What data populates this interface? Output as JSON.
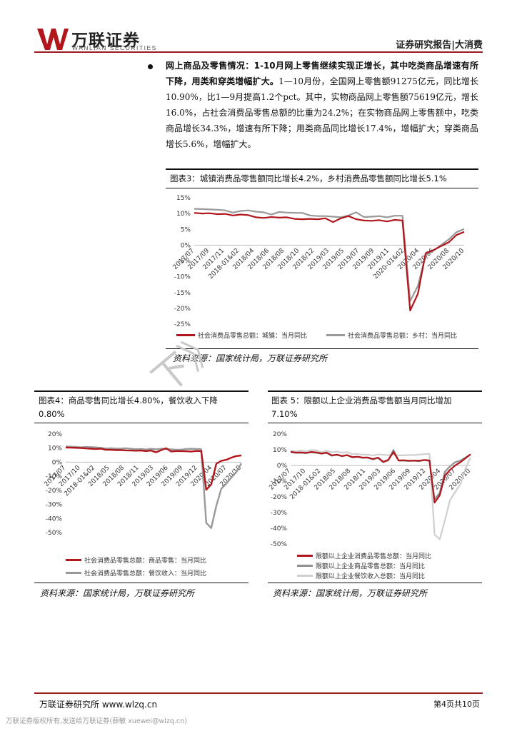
{
  "header": {
    "logo_cn": "万联证券",
    "logo_en": "WANLIAN SECURITIES",
    "report_type": "证券研究报告|大消费",
    "brand_color": "#9b1c20"
  },
  "body": {
    "lead": "网上商品及零售情况：1-10月网上零售继续实现正增长，其中吃类商品增速有所下降，用类和穿类增幅扩大。",
    "text": "1—10月份，全国网上零售额91275亿元，同比增长10.90%，比1—9月提高1.2个pct。其中，实物商品网上零售额75619亿元，增长16.0%，占社会消费品零售总额的比重为24.2%；在实物商品网上零售额中，吃类商品增长34.3%，增速有所下降；用类商品同比增长17.4%，增幅扩大；穿类商品增长5.6%，增幅扩大。"
  },
  "stamp_text": "下》",
  "fig3": {
    "title": "图表3：城镇消费品零售额同比增长4.2%，乡村消费品零售额同比增长5.1%",
    "source": "资料来源：国家统计局，万联证券研究所"
  },
  "fig4": {
    "title_line1": "图表4：商品零售同比增长4.80%，餐饮收入下降",
    "title_line2": "0.80%",
    "source": "资料来源：国家统计局，万联证券研究所"
  },
  "fig5": {
    "title_line1": "图表 5：限额以上企业消费品零售额当月同比增加",
    "title_line2": "7.10%",
    "source": "资料来源：国家统计局，万联证券研究所"
  },
  "footer": {
    "left": "万联证券研究所 www.wlzq.cn",
    "right": "第4页共10页",
    "watermark": "万联证券版权所有,发送给万联证券(薛敏 xuewei@wlzq.cn)"
  },
  "chart_data": [
    {
      "type": "line",
      "id": "fig3",
      "ylim": [
        -25,
        15
      ],
      "y_ticks": [
        "15%",
        "10%",
        "5%",
        "0%",
        "-5%",
        "-10%",
        "-15%",
        "-20%",
        "-25%"
      ],
      "x_ticks": [
        "2017/07",
        "2017/09",
        "2017/11",
        "2018-01&02",
        "2018/04",
        "2018/06",
        "2018/08",
        "2018/10",
        "2018/12",
        "2019/03",
        "2019/05",
        "2019/07",
        "2019/09",
        "2019/11",
        "2020-01&02",
        "2020/04",
        "2020/06",
        "2020/08",
        "2020/10"
      ],
      "grid": false,
      "legend_position": "bottom",
      "series": [
        {
          "name": "社会消费品零售总额：城镇：当月同比",
          "color": "#b0161c",
          "values": [
            10.2,
            10.0,
            10.1,
            9.8,
            9.9,
            9.4,
            9.7,
            9.5,
            8.8,
            8.6,
            8.9,
            8.7,
            8.8,
            8.3,
            8.2,
            8.3,
            8.2,
            8.5,
            7.3,
            8.5,
            9.2,
            8.2,
            7.8,
            7.7,
            7.9,
            7.5,
            8.0,
            7.8,
            -20.7,
            -15.4,
            -2.6,
            -1.6,
            -0.3,
            0.9,
            3.2,
            4.2
          ]
        },
        {
          "name": "社会消费品零售总额：乡村：当月同比",
          "color": "#999999",
          "values": [
            11.5,
            11.4,
            11.3,
            11.2,
            11.0,
            10.3,
            10.8,
            11.0,
            10.6,
            10.4,
            9.7,
            10.5,
            10.3,
            10.2,
            10.2,
            9.4,
            9.2,
            9.2,
            9.0,
            8.8,
            9.4,
            10.4,
            8.9,
            9.0,
            9.2,
            8.8,
            9.3,
            9.3,
            -17.7,
            -12.9,
            -3.2,
            -1.8,
            0.0,
            1.8,
            4.1,
            5.1
          ]
        }
      ]
    },
    {
      "type": "line",
      "id": "fig4",
      "ylim": [
        -50,
        20
      ],
      "y_ticks": [
        "20%",
        "10%",
        "0%",
        "-10%",
        "-20%",
        "-30%",
        "-40%",
        "-50%"
      ],
      "x_ticks": [
        "2017/07",
        "2017/10",
        "2018-01&02",
        "2018/05",
        "2018/08",
        "2018/11",
        "2019/03",
        "2019/06",
        "2019/09",
        "2019/12",
        "2020/04",
        "2020/07",
        "2020/10"
      ],
      "grid": false,
      "legend_position": "bottom",
      "series": [
        {
          "name": "社会消费品零售总额：商品零售：当月同比",
          "color": "#b0161c",
          "values": [
            10.4,
            10.3,
            10.2,
            10.1,
            9.8,
            9.6,
            9.4,
            9.6,
            8.8,
            8.8,
            8.6,
            8.6,
            8.4,
            8.3,
            8.2,
            8.3,
            7.9,
            8.3,
            7.0,
            8.5,
            9.9,
            7.6,
            7.9,
            7.9,
            7.8,
            7.5,
            8.0,
            7.9,
            -19.6,
            -15.8,
            -1.1,
            1.0,
            1.7,
            3.2,
            4.4,
            4.8
          ]
        },
        {
          "name": "社会消费品零售总额：餐饮收入：当月同比",
          "color": "#999999",
          "values": [
            11.1,
            11.0,
            10.9,
            10.5,
            10.8,
            10.7,
            10.5,
            10.2,
            9.7,
            9.9,
            9.6,
            9.7,
            9.9,
            9.5,
            9.2,
            9.4,
            9.0,
            9.5,
            9.1,
            9.5,
            9.4,
            9.1,
            8.9,
            8.9,
            9.4,
            9.5,
            9.4,
            9.2,
            -43.1,
            -46.8,
            -31.1,
            -18.9,
            -15.2,
            -11.0,
            -7.0,
            -0.8
          ]
        }
      ]
    },
    {
      "type": "line",
      "id": "fig5",
      "ylim": [
        -50,
        20
      ],
      "y_ticks": [
        "20%",
        "10%",
        "0%",
        "-10%",
        "-20%",
        "-30%",
        "-40%",
        "-50%"
      ],
      "x_ticks": [
        "2017/07",
        "2017/10",
        "2018-01&02",
        "2018/05",
        "2018/08",
        "2018/11",
        "2019/03",
        "2019/06",
        "2019/09",
        "2019/12",
        "2020/04",
        "2020/07",
        "2020/10"
      ],
      "grid": false,
      "legend_position": "bottom",
      "series": [
        {
          "name": "限额以上企业消费品零售总额：当月同比",
          "color": "#b0161c",
          "values": [
            8.7,
            8.2,
            8.3,
            8.0,
            8.6,
            8.3,
            7.6,
            8.2,
            6.4,
            6.9,
            6.0,
            6.6,
            5.3,
            5.6,
            5.0,
            5.1,
            4.1,
            5.0,
            2.3,
            3.6,
            8.6,
            3.2,
            3.3,
            3.0,
            3.1,
            3.0,
            3.5,
            3.2,
            -23.7,
            -19.0,
            -6.4,
            -2.8,
            0.0,
            2.0,
            4.6,
            7.1
          ]
        },
        {
          "name": "限额以上企业商品零售总额：当月同比",
          "color": "#8f8f8f",
          "values": [
            8.5,
            8.0,
            8.0,
            7.8,
            8.4,
            8.0,
            7.5,
            8.0,
            6.2,
            6.7,
            5.9,
            6.5,
            5.1,
            5.4,
            4.8,
            4.9,
            3.8,
            4.8,
            2.0,
            3.2,
            9.9,
            3.0,
            3.0,
            2.8,
            3.0,
            2.7,
            3.3,
            2.9,
            -21.7,
            -17.4,
            -4.0,
            -0.6,
            2.1,
            3.1,
            5.0,
            7.0
          ]
        },
        {
          "name": "限额以上企业餐饮收入总额：当月同比",
          "color": "#cfcfcf",
          "values": [
            9.3,
            9.0,
            9.5,
            9.0,
            9.8,
            9.6,
            8.4,
            9.4,
            8.3,
            8.9,
            8.1,
            8.5,
            7.2,
            7.3,
            6.8,
            6.9,
            6.3,
            7.0,
            6.8,
            6.5,
            7.0,
            6.4,
            6.4,
            6.7,
            6.6,
            6.9,
            7.2,
            7.4,
            -44.0,
            -47.0,
            -35.0,
            -22.0,
            -17.0,
            -12.0,
            -2.0,
            5.0
          ]
        }
      ]
    }
  ]
}
